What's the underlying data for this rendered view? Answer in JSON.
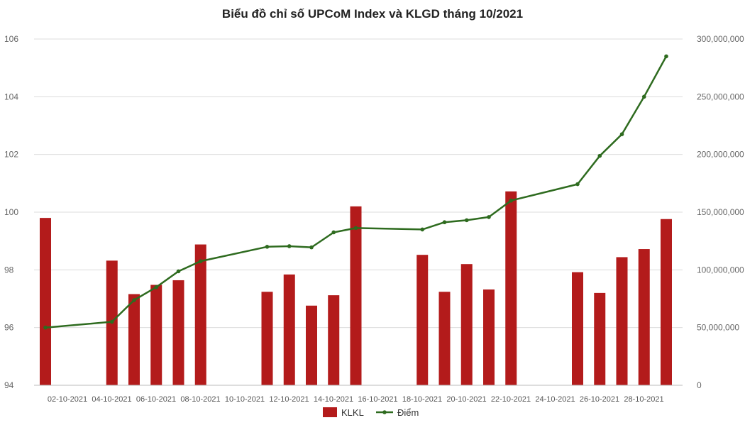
{
  "chart_data": {
    "type": "bar",
    "title": "Biểu đồ chỉ số UPCoM Index và KLGD tháng 10/2021",
    "x_ticks": [
      "02-10-2021",
      "04-10-2021",
      "06-10-2021",
      "08-10-2021",
      "10-10-2021",
      "12-10-2021",
      "14-10-2021",
      "16-10-2021",
      "18-10-2021",
      "20-10-2021",
      "22-10-2021",
      "24-10-2021",
      "26-10-2021",
      "28-10-2021"
    ],
    "left_axis": {
      "ylim": [
        94,
        106
      ],
      "ticks": [
        "94",
        "96",
        "98",
        "100",
        "102",
        "104",
        "106"
      ]
    },
    "right_axis": {
      "ylim": [
        0,
        300000000
      ],
      "ticks": [
        "0",
        "50,000,000",
        "100,000,000",
        "150,000,000",
        "200,000,000",
        "250,000,000",
        "300,000,000"
      ]
    },
    "grid": true,
    "legend_position": "bottom",
    "series": [
      {
        "name": "KLKL",
        "kind": "bar",
        "axis": "right",
        "color": "#b31b1b",
        "data": [
          [
            "2021-10-01",
            145000000
          ],
          [
            "2021-10-04",
            108000000
          ],
          [
            "2021-10-05",
            79000000
          ],
          [
            "2021-10-06",
            87000000
          ],
          [
            "2021-10-07",
            91000000
          ],
          [
            "2021-10-08",
            122000000
          ],
          [
            "2021-10-11",
            81000000
          ],
          [
            "2021-10-12",
            96000000
          ],
          [
            "2021-10-13",
            69000000
          ],
          [
            "2021-10-14",
            78000000
          ],
          [
            "2021-10-15",
            155000000
          ],
          [
            "2021-10-18",
            113000000
          ],
          [
            "2021-10-19",
            81000000
          ],
          [
            "2021-10-20",
            105000000
          ],
          [
            "2021-10-21",
            83000000
          ],
          [
            "2021-10-22",
            168000000
          ],
          [
            "2021-10-25",
            98000000
          ],
          [
            "2021-10-26",
            80000000
          ],
          [
            "2021-10-27",
            111000000
          ],
          [
            "2021-10-28",
            118000000
          ],
          [
            "2021-10-29",
            144000000
          ]
        ]
      },
      {
        "name": "Điểm",
        "kind": "line",
        "axis": "left",
        "color": "#2e6b1f",
        "data": [
          [
            "2021-10-01",
            96.0
          ],
          [
            "2021-10-04",
            96.2
          ],
          [
            "2021-10-05",
            96.95
          ],
          [
            "2021-10-06",
            97.4
          ],
          [
            "2021-10-07",
            97.95
          ],
          [
            "2021-10-08",
            98.3
          ],
          [
            "2021-10-11",
            98.8
          ],
          [
            "2021-10-12",
            98.82
          ],
          [
            "2021-10-13",
            98.78
          ],
          [
            "2021-10-14",
            99.3
          ],
          [
            "2021-10-15",
            99.45
          ],
          [
            "2021-10-18",
            99.4
          ],
          [
            "2021-10-19",
            99.65
          ],
          [
            "2021-10-20",
            99.72
          ],
          [
            "2021-10-21",
            99.83
          ],
          [
            "2021-10-22",
            100.4
          ],
          [
            "2021-10-25",
            100.97
          ],
          [
            "2021-10-26",
            101.95
          ],
          [
            "2021-10-27",
            102.7
          ],
          [
            "2021-10-28",
            104.0
          ],
          [
            "2021-10-29",
            105.4
          ]
        ]
      }
    ]
  }
}
